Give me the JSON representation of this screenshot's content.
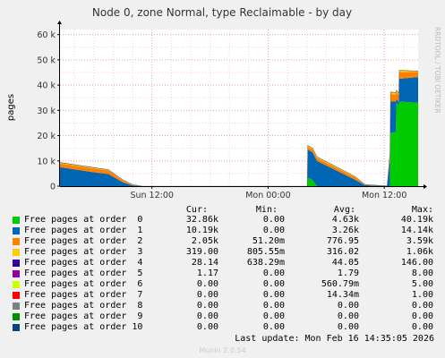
{
  "chart_data": {
    "type": "area",
    "stacked": true,
    "title": "Node 0, zone Normal, type Reclaimable - by day",
    "ylabel": "pages",
    "side_label": "RRDTOOL / TOBI OETIKER",
    "ylim": [
      0,
      62000
    ],
    "yticks": [
      0,
      10000,
      20000,
      30000,
      40000,
      50000,
      60000
    ],
    "ytick_labels": [
      "0",
      "10 k",
      "20 k",
      "30 k",
      "40 k",
      "50 k",
      "60 k"
    ],
    "xtick_labels": [
      "Sun 12:00",
      "Mon 00:00",
      "Mon 12:00"
    ],
    "x_hours_labels": [
      0,
      12,
      24
    ],
    "x_range_hours": [
      -9.5,
      27.5
    ],
    "grid": true,
    "series": [
      {
        "name": "Free pages at order  0",
        "color": "#00cc00",
        "points": [
          [
            -9.5,
            0
          ],
          [
            16.05,
            0
          ],
          [
            16.1,
            3400
          ],
          [
            16.6,
            2400
          ],
          [
            17.05,
            0
          ],
          [
            24.6,
            0
          ],
          [
            24.65,
            21000
          ],
          [
            25.2,
            21500
          ],
          [
            25.25,
            33000
          ],
          [
            25.5,
            32000
          ],
          [
            25.55,
            33500
          ],
          [
            27.5,
            33000
          ]
        ]
      },
      {
        "name": "Free pages at order  1",
        "color": "#0066b3",
        "points": [
          [
            -9.5,
            7500
          ],
          [
            -6,
            5500
          ],
          [
            -4.5,
            4800
          ],
          [
            -3,
            1500
          ],
          [
            -2,
            300
          ],
          [
            -1,
            0
          ],
          [
            16.05,
            0
          ],
          [
            16.1,
            11000
          ],
          [
            16.6,
            11000
          ],
          [
            17.05,
            10000
          ],
          [
            21,
            2500
          ],
          [
            22,
            400
          ],
          [
            24.3,
            0
          ],
          [
            24.4,
            3800
          ],
          [
            24.65,
            12500
          ],
          [
            25.2,
            12000
          ],
          [
            25.25,
            1500
          ],
          [
            25.5,
            1500
          ],
          [
            25.55,
            9000
          ],
          [
            27.5,
            10190
          ]
        ]
      },
      {
        "name": "Free pages at order  2",
        "color": "#ff8000",
        "points": [
          [
            -9.5,
            1500
          ],
          [
            -6,
            1500
          ],
          [
            -4.5,
            1400
          ],
          [
            -3,
            700
          ],
          [
            -2,
            200
          ],
          [
            -1,
            0
          ],
          [
            16.05,
            0
          ],
          [
            16.1,
            1200
          ],
          [
            21,
            1000
          ],
          [
            22,
            200
          ],
          [
            24.3,
            0
          ],
          [
            24.4,
            700
          ],
          [
            24.65,
            3000
          ],
          [
            27.5,
            2050
          ]
        ]
      },
      {
        "name": "Free pages at order  3",
        "color": "#ffcc00",
        "points": [
          [
            -9.5,
            300
          ],
          [
            -6,
            300
          ],
          [
            -3,
            200
          ],
          [
            -1,
            0
          ],
          [
            16.05,
            0
          ],
          [
            16.1,
            400
          ],
          [
            21,
            300
          ],
          [
            22,
            100
          ],
          [
            24.3,
            0
          ],
          [
            24.65,
            700
          ],
          [
            27.5,
            319
          ]
        ]
      },
      {
        "name": "Free pages at order  4",
        "color": "#330099",
        "points": [
          [
            -9.5,
            100
          ],
          [
            -3,
            80
          ],
          [
            -1,
            0
          ],
          [
            16.05,
            0
          ],
          [
            16.1,
            100
          ],
          [
            22,
            0
          ],
          [
            24.65,
            100
          ],
          [
            27.5,
            28
          ]
        ]
      },
      {
        "name": "Free pages at order  5",
        "color": "#990099",
        "points": []
      },
      {
        "name": "Free pages at order  6",
        "color": "#ccff00",
        "points": []
      },
      {
        "name": "Free pages at order  7",
        "color": "#ff0000",
        "points": []
      },
      {
        "name": "Free pages at order  8",
        "color": "#808080",
        "points": []
      },
      {
        "name": "Free pages at order  9",
        "color": "#008f00",
        "points": []
      },
      {
        "name": "Free pages at order 10",
        "color": "#00487d",
        "points": []
      }
    ]
  },
  "legend": {
    "headers": {
      "cur": "Cur:",
      "min": "Min:",
      "avg": "Avg:",
      "max": "Max:"
    },
    "rows": [
      {
        "label": "Free pages at order  0",
        "cur": "32.86k",
        "min": "0.00",
        "avg": "4.63k",
        "max": "40.19k"
      },
      {
        "label": "Free pages at order  1",
        "cur": "10.19k",
        "min": "0.00",
        "avg": "3.26k",
        "max": "14.14k"
      },
      {
        "label": "Free pages at order  2",
        "cur": "2.05k",
        "min": "51.20m",
        "avg": "776.95",
        "max": "3.59k"
      },
      {
        "label": "Free pages at order  3",
        "cur": "319.00",
        "min": "805.55m",
        "avg": "316.02",
        "max": "1.06k"
      },
      {
        "label": "Free pages at order  4",
        "cur": "28.14",
        "min": "638.29m",
        "avg": "44.05",
        "max": "146.00"
      },
      {
        "label": "Free pages at order  5",
        "cur": "1.17",
        "min": "0.00",
        "avg": "1.79",
        "max": "8.00"
      },
      {
        "label": "Free pages at order  6",
        "cur": "0.00",
        "min": "0.00",
        "avg": "560.79m",
        "max": "5.00"
      },
      {
        "label": "Free pages at order  7",
        "cur": "0.00",
        "min": "0.00",
        "avg": "14.34m",
        "max": "1.00"
      },
      {
        "label": "Free pages at order  8",
        "cur": "0.00",
        "min": "0.00",
        "avg": "0.00",
        "max": "0.00"
      },
      {
        "label": "Free pages at order  9",
        "cur": "0.00",
        "min": "0.00",
        "avg": "0.00",
        "max": "0.00"
      },
      {
        "label": "Free pages at order 10",
        "cur": "0.00",
        "min": "0.00",
        "avg": "0.00",
        "max": "0.00"
      }
    ]
  },
  "last_update": "Last update: Mon Feb 16 14:35:05 2026",
  "footer": "Munin 2.0.54"
}
